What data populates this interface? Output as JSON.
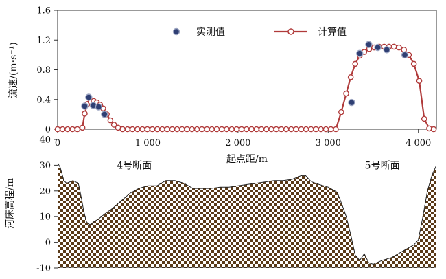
{
  "chart_data": [
    {
      "type": "scatter+line",
      "ylabel": "流速/(m·s⁻¹)",
      "xlabel": "起点距/m",
      "xlim": [
        0,
        4200
      ],
      "ylim": [
        0,
        1.6
      ],
      "xticks": [
        {
          "v": 0,
          "label": "0"
        },
        {
          "v": 1000,
          "label": "1 000"
        },
        {
          "v": 2000,
          "label": "2 000"
        },
        {
          "v": 3000,
          "label": "3 000"
        },
        {
          "v": 4000,
          "label": "4 000"
        }
      ],
      "yticks": [
        {
          "v": 0,
          "label": "0"
        },
        {
          "v": 0.4,
          "label": "0.4"
        },
        {
          "v": 0.8,
          "label": "0.8"
        },
        {
          "v": 1.2,
          "label": "1.2"
        },
        {
          "v": 1.6,
          "label": "1.6"
        }
      ],
      "legend_position": "top-center",
      "series": [
        {
          "name": "实测值",
          "kind": "scatter",
          "color": "#2f3f73",
          "x": [
            300,
            345,
            395,
            455,
            520,
            3260,
            3350,
            3450,
            3550,
            3650,
            3850
          ],
          "y": [
            0.31,
            0.43,
            0.32,
            0.3,
            0.2,
            0.36,
            1.02,
            1.14,
            1.1,
            1.07,
            1.0
          ]
        },
        {
          "name": "计算值",
          "kind": "line",
          "color": "#b03a3a",
          "x": [
            0,
            55,
            110,
            165,
            220,
            275,
            300,
            330,
            365,
            400,
            435,
            470,
            505,
            545,
            585,
            625,
            670,
            720,
            775,
            830,
            885,
            940,
            995,
            1050,
            1105,
            1160,
            1215,
            1270,
            1325,
            1380,
            1435,
            1490,
            1545,
            1600,
            1655,
            1710,
            1765,
            1820,
            1875,
            1930,
            1985,
            2040,
            2095,
            2150,
            2205,
            2260,
            2315,
            2370,
            2425,
            2480,
            2535,
            2590,
            2645,
            2700,
            2755,
            2810,
            2865,
            2920,
            2975,
            3030,
            3085,
            3145,
            3200,
            3250,
            3300,
            3350,
            3400,
            3455,
            3510,
            3565,
            3620,
            3675,
            3730,
            3785,
            3840,
            3895,
            3950,
            4010,
            4065,
            4120,
            4170
          ],
          "y": [
            0,
            0,
            0,
            0,
            0,
            0.02,
            0.21,
            0.34,
            0.37,
            0.38,
            0.36,
            0.33,
            0.28,
            0.2,
            0.12,
            0.06,
            0.02,
            0,
            0,
            0,
            0,
            0,
            0,
            0,
            0,
            0,
            0,
            0,
            0,
            0,
            0,
            0,
            0,
            0,
            0,
            0,
            0,
            0,
            0,
            0,
            0,
            0,
            0,
            0,
            0,
            0,
            0,
            0,
            0,
            0,
            0,
            0,
            0,
            0,
            0,
            0,
            0,
            0,
            0,
            0,
            0,
            0.23,
            0.48,
            0.7,
            0.88,
            0.99,
            1.04,
            1.08,
            1.1,
            1.11,
            1.11,
            1.11,
            1.11,
            1.1,
            1.07,
            1.0,
            0.88,
            0.65,
            0.14,
            0.01,
            0
          ]
        }
      ]
    },
    {
      "type": "area",
      "ylabel": "河床高程/m",
      "xlim": [
        0,
        4200
      ],
      "ylim": [
        -10,
        40
      ],
      "yticks": [
        {
          "v": -10,
          "label": "-10"
        },
        {
          "v": 0,
          "label": "0"
        },
        {
          "v": 10,
          "label": "10"
        },
        {
          "v": 20,
          "label": "20"
        },
        {
          "v": 30,
          "label": "30"
        },
        {
          "v": 40,
          "label": "40"
        }
      ],
      "annotations": [
        {
          "text": "4号断面",
          "x": 850,
          "y": 30
        },
        {
          "text": "5号断面",
          "x": 3600,
          "y": 30
        }
      ],
      "x": [
        0,
        30,
        70,
        100,
        170,
        230,
        265,
        290,
        320,
        345,
        370,
        400,
        450,
        520,
        600,
        700,
        800,
        900,
        1000,
        1100,
        1200,
        1300,
        1400,
        1500,
        1600,
        1700,
        1800,
        1900,
        2000,
        2100,
        2200,
        2300,
        2400,
        2500,
        2600,
        2700,
        2750,
        2800,
        2820,
        2900,
        3000,
        3100,
        3150,
        3200,
        3250,
        3300,
        3350,
        3400,
        3450,
        3500,
        3600,
        3700,
        3800,
        3850,
        3900,
        3950,
        4000,
        4050,
        4100,
        4150,
        4200
      ],
      "y": [
        31,
        29,
        24,
        23,
        24,
        23,
        17,
        12,
        8,
        7,
        7,
        8,
        9,
        11,
        13,
        16,
        19,
        21,
        22,
        22,
        24,
        24,
        23,
        21,
        21,
        21,
        21.5,
        21.5,
        22,
        22.5,
        23,
        23.5,
        24,
        24,
        24.5,
        26,
        26,
        24,
        23.5,
        22.5,
        21.5,
        19.5,
        15,
        10,
        3,
        -5,
        -7,
        -4.5,
        -8,
        -8.5,
        -7,
        -6,
        -4,
        -3,
        -2,
        -1,
        1,
        10,
        20,
        26,
        30
      ]
    }
  ],
  "colors": {
    "measured_fill": "#2f3f73",
    "calc_line": "#b03a3a",
    "pattern_brown": "#5a3a18"
  }
}
